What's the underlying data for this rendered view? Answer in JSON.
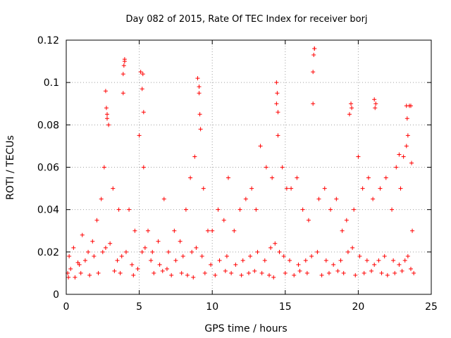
{
  "chart_data": {
    "type": "scatter",
    "title": "Day 082 of 2015, Rate Of TEC Index for receiver borj",
    "xlabel": "GPS time / hours",
    "ylabel": "ROTI / TECUs",
    "xlim": [
      0,
      25
    ],
    "ylim": [
      0,
      0.12
    ],
    "xticks": [
      0,
      5,
      10,
      15,
      20,
      25
    ],
    "xtick_labels": [
      "0",
      "5",
      "10",
      "15",
      "20",
      "25"
    ],
    "yticks": [
      0,
      0.02,
      0.04,
      0.06,
      0.08,
      0.1,
      0.12
    ],
    "ytick_labels": [
      "0",
      "0.02",
      "0.04",
      "0.06",
      "0.08",
      "0.1",
      "0.12"
    ],
    "grid": true,
    "marker": "plus",
    "color": "#ff0000",
    "series": [
      {
        "x": [
          0.2,
          0.5,
          0.8,
          1.1,
          1.5,
          1.8,
          2.1,
          2.4,
          2.6,
          2.8,
          2.9,
          3.2,
          3.6,
          3.9,
          4.0,
          4.3,
          4.7,
          5.0,
          5.1,
          5.3,
          5.6,
          5.9,
          6.3,
          6.7,
          7.0,
          7.4,
          7.8,
          8.2,
          8.5,
          8.8,
          9.0,
          9.1,
          9.4,
          9.7,
          10.0,
          10.4,
          10.8,
          11.1,
          11.5,
          11.9,
          12.3,
          12.7,
          13.0,
          13.3,
          13.7,
          14.1,
          14.4,
          14.5,
          14.8,
          15.1,
          15.4,
          15.8,
          16.2,
          16.6,
          16.9,
          17.0,
          17.3,
          17.7,
          18.1,
          18.5,
          18.9,
          19.2,
          19.4,
          19.7,
          20.0,
          20.3,
          20.7,
          21.0,
          21.2,
          21.5,
          21.9,
          22.3,
          22.6,
          22.9,
          23.1,
          23.3,
          23.5,
          23.7,
          0.3,
          0.9,
          1.3,
          1.9,
          2.5,
          2.7,
          3.0,
          3.5,
          3.8,
          4.1,
          4.5,
          4.9,
          5.2,
          5.4,
          5.8,
          6.4,
          6.9,
          7.5,
          8.0,
          8.6,
          8.9,
          9.3,
          9.9,
          10.5,
          11.0,
          11.6,
          12.1,
          12.6,
          13.1,
          13.6,
          14.0,
          14.3,
          14.6,
          14.9,
          15.3,
          15.9,
          16.4,
          16.8,
          17.2,
          17.8,
          18.3,
          18.8,
          19.3,
          19.6,
          20.1,
          20.6,
          21.1,
          21.4,
          21.8,
          22.4,
          22.8,
          23.2,
          23.4,
          23.6,
          2.7,
          2.75,
          2.8,
          3.9,
          3.95,
          4.0,
          5.2,
          5.25,
          5.3,
          9.1,
          9.15,
          9.2,
          14.4,
          14.45,
          14.5,
          16.9,
          16.95,
          17.0,
          19.5,
          19.55,
          21.1,
          21.15,
          23.3,
          23.35,
          23.4,
          23.6,
          23.65,
          22.8,
          0.1,
          0.15,
          0.6,
          1.0,
          1.6,
          2.2,
          3.3,
          3.7,
          4.6,
          6.0,
          6.6,
          7.2,
          7.9,
          8.3,
          8.7,
          9.5,
          10.2,
          10.9,
          11.3,
          12.0,
          12.5,
          12.9,
          13.4,
          13.9,
          14.2,
          15.0,
          15.6,
          16.0,
          16.5,
          17.5,
          18.0,
          18.6,
          19.0,
          19.8,
          20.4,
          20.9,
          21.6,
          22.0,
          22.5,
          23.0,
          23.8
        ],
        "y": [
          0.018,
          0.022,
          0.015,
          0.028,
          0.02,
          0.025,
          0.035,
          0.045,
          0.06,
          0.085,
          0.08,
          0.05,
          0.04,
          0.095,
          0.11,
          0.04,
          0.03,
          0.075,
          0.105,
          0.06,
          0.03,
          0.02,
          0.025,
          0.045,
          0.02,
          0.03,
          0.025,
          0.04,
          0.055,
          0.065,
          0.102,
          0.095,
          0.05,
          0.03,
          0.03,
          0.04,
          0.035,
          0.055,
          0.03,
          0.04,
          0.045,
          0.05,
          0.04,
          0.07,
          0.06,
          0.055,
          0.09,
          0.075,
          0.06,
          0.05,
          0.05,
          0.055,
          0.04,
          0.035,
          0.09,
          0.116,
          0.045,
          0.05,
          0.04,
          0.045,
          0.03,
          0.035,
          0.085,
          0.04,
          0.065,
          0.05,
          0.055,
          0.045,
          0.09,
          0.05,
          0.055,
          0.04,
          0.06,
          0.05,
          0.065,
          0.07,
          0.089,
          0.03,
          0.012,
          0.014,
          0.016,
          0.018,
          0.02,
          0.022,
          0.024,
          0.016,
          0.018,
          0.02,
          0.014,
          0.012,
          0.02,
          0.022,
          0.016,
          0.014,
          0.012,
          0.016,
          0.018,
          0.02,
          0.022,
          0.018,
          0.014,
          0.016,
          0.018,
          0.014,
          0.016,
          0.018,
          0.02,
          0.016,
          0.022,
          0.024,
          0.02,
          0.018,
          0.016,
          0.014,
          0.016,
          0.018,
          0.02,
          0.016,
          0.014,
          0.016,
          0.02,
          0.022,
          0.018,
          0.016,
          0.014,
          0.016,
          0.018,
          0.016,
          0.014,
          0.016,
          0.018,
          0.012,
          0.096,
          0.088,
          0.083,
          0.104,
          0.108,
          0.111,
          0.097,
          0.104,
          0.086,
          0.098,
          0.085,
          0.078,
          0.1,
          0.095,
          0.086,
          0.105,
          0.113,
          0.116,
          0.09,
          0.088,
          0.092,
          0.088,
          0.089,
          0.083,
          0.075,
          0.089,
          0.062,
          0.066,
          0.01,
          0.008,
          0.008,
          0.01,
          0.009,
          0.01,
          0.011,
          0.01,
          0.009,
          0.01,
          0.011,
          0.009,
          0.01,
          0.009,
          0.008,
          0.01,
          0.009,
          0.011,
          0.01,
          0.009,
          0.01,
          0.011,
          0.01,
          0.009,
          0.008,
          0.01,
          0.009,
          0.011,
          0.01,
          0.009,
          0.01,
          0.011,
          0.01,
          0.009,
          0.01,
          0.011,
          0.01,
          0.009,
          0.01,
          0.011,
          0.01
        ]
      }
    ]
  }
}
